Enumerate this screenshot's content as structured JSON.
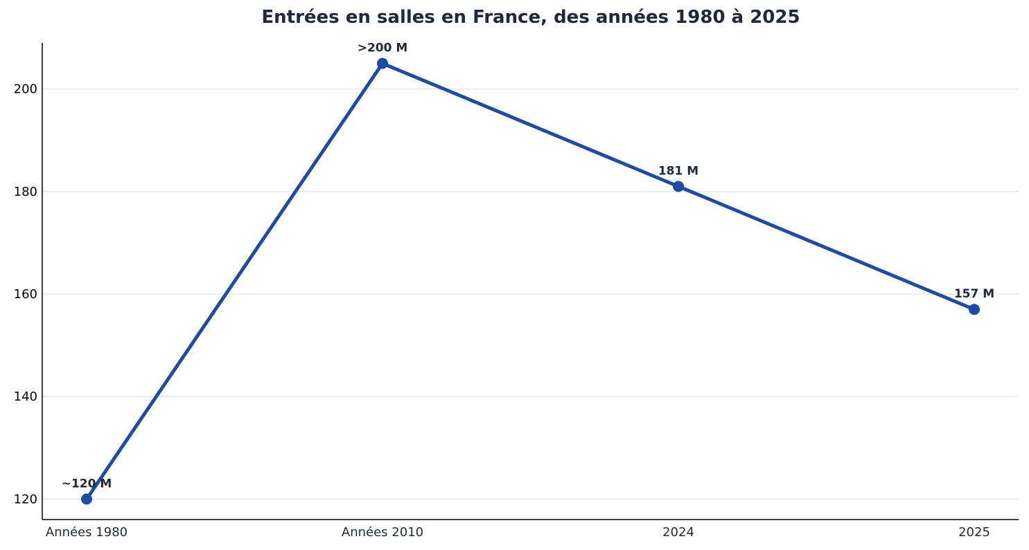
{
  "chart_data": {
    "type": "line",
    "title": "Entrées en salles en France, des années 1980 à 2025",
    "xlabel": "",
    "ylabel": "",
    "categories": [
      "Années 1980",
      "Années 2010",
      "2024",
      "2025"
    ],
    "series": [
      {
        "values": [
          120,
          205,
          181,
          157
        ],
        "labels": [
          "~120 M",
          ">200 M",
          "181 M",
          "157 M"
        ],
        "color": "#1d4ba8"
      }
    ],
    "y_ticks": [
      120,
      140,
      160,
      180,
      200
    ],
    "ylim": [
      116,
      209
    ],
    "grid": "horizontal",
    "colors": {
      "line": "#1d4ba8",
      "grid": "#e5e7eb",
      "axis": "#000000",
      "text": "#1f2937"
    }
  }
}
